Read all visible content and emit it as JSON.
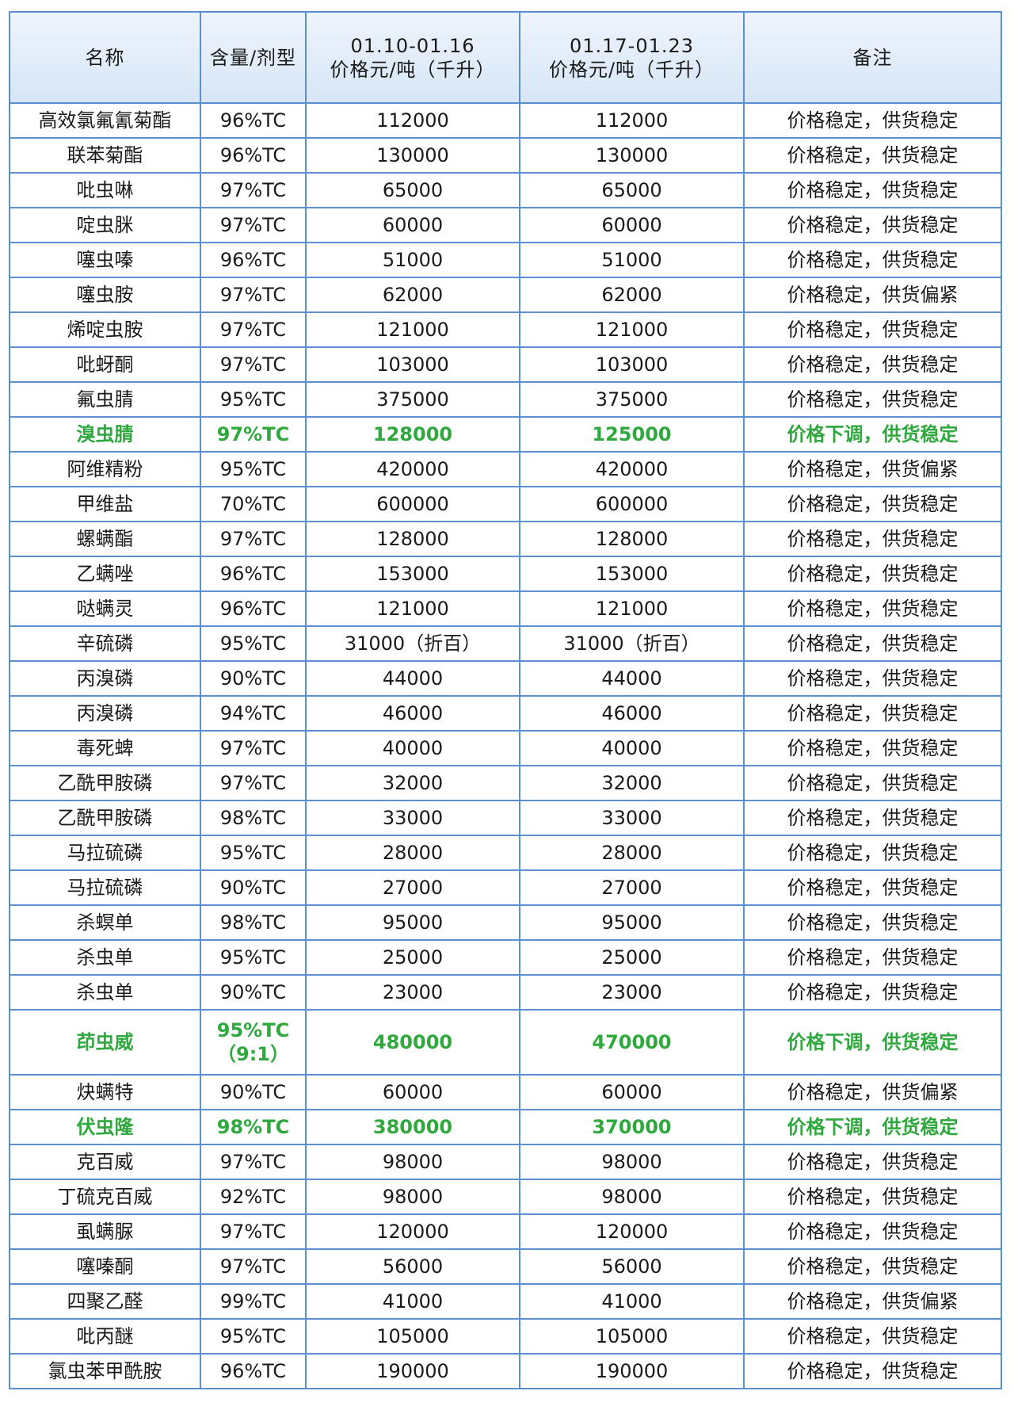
{
  "table": {
    "header": [
      [
        "名称"
      ],
      [
        "含量/剂型"
      ],
      [
        "01.10-01.16",
        "价格元/吨（千升）"
      ],
      [
        "01.17-01.23",
        "价格元/吨（千升）"
      ],
      [
        "备注"
      ]
    ],
    "highlight_color": "#2fa83e",
    "rows": [
      {
        "cells": [
          "高效氯氟氰菊酯",
          "96%TC",
          "112000",
          "112000",
          "价格稳定，供货稳定"
        ]
      },
      {
        "cells": [
          "联苯菊酯",
          "96%TC",
          "130000",
          "130000",
          "价格稳定，供货稳定"
        ]
      },
      {
        "cells": [
          "吡虫啉",
          "97%TC",
          "65000",
          "65000",
          "价格稳定，供货稳定"
        ]
      },
      {
        "cells": [
          "啶虫脒",
          "97%TC",
          "60000",
          "60000",
          "价格稳定，供货稳定"
        ]
      },
      {
        "cells": [
          "噻虫嗪",
          "96%TC",
          "51000",
          "51000",
          "价格稳定，供货稳定"
        ]
      },
      {
        "cells": [
          "噻虫胺",
          "97%TC",
          "62000",
          "62000",
          "价格稳定，供货偏紧"
        ]
      },
      {
        "cells": [
          "烯啶虫胺",
          "97%TC",
          "121000",
          "121000",
          "价格稳定，供货稳定"
        ]
      },
      {
        "cells": [
          "吡蚜酮",
          "97%TC",
          "103000",
          "103000",
          "价格稳定，供货稳定"
        ]
      },
      {
        "cells": [
          "氟虫腈",
          "95%TC",
          "375000",
          "375000",
          "价格稳定，供货稳定"
        ]
      },
      {
        "cells": [
          "溴虫腈",
          "97%TC",
          "128000",
          "125000",
          "价格下调，供货稳定"
        ],
        "highlight": true
      },
      {
        "cells": [
          "阿维精粉",
          "95%TC",
          "420000",
          "420000",
          "价格稳定，供货偏紧"
        ]
      },
      {
        "cells": [
          "甲维盐",
          "70%TC",
          "600000",
          "600000",
          "价格稳定，供货稳定"
        ]
      },
      {
        "cells": [
          "螺螨酯",
          "97%TC",
          "128000",
          "128000",
          "价格稳定，供货稳定"
        ]
      },
      {
        "cells": [
          "乙螨唑",
          "96%TC",
          "153000",
          "153000",
          "价格稳定，供货稳定"
        ]
      },
      {
        "cells": [
          "哒螨灵",
          "96%TC",
          "121000",
          "121000",
          "价格稳定，供货稳定"
        ]
      },
      {
        "cells": [
          "辛硫磷",
          "95%TC",
          "31000（折百）",
          "31000（折百）",
          "价格稳定，供货稳定"
        ]
      },
      {
        "cells": [
          "丙溴磷",
          "90%TC",
          "44000",
          "44000",
          "价格稳定，供货稳定"
        ]
      },
      {
        "cells": [
          "丙溴磷",
          "94%TC",
          "46000",
          "46000",
          "价格稳定，供货稳定"
        ]
      },
      {
        "cells": [
          "毒死蜱",
          "97%TC",
          "40000",
          "40000",
          "价格稳定，供货稳定"
        ]
      },
      {
        "cells": [
          "乙酰甲胺磷",
          "97%TC",
          "32000",
          "32000",
          "价格稳定，供货稳定"
        ]
      },
      {
        "cells": [
          "乙酰甲胺磷",
          "98%TC",
          "33000",
          "33000",
          "价格稳定，供货稳定"
        ]
      },
      {
        "cells": [
          "马拉硫磷",
          "95%TC",
          "28000",
          "28000",
          "价格稳定，供货稳定"
        ]
      },
      {
        "cells": [
          "马拉硫磷",
          "90%TC",
          "27000",
          "27000",
          "价格稳定，供货稳定"
        ]
      },
      {
        "cells": [
          "杀螟单",
          "98%TC",
          "95000",
          "95000",
          "价格稳定，供货稳定"
        ]
      },
      {
        "cells": [
          "杀虫单",
          "95%TC",
          "25000",
          "25000",
          "价格稳定，供货稳定"
        ]
      },
      {
        "cells": [
          "杀虫单",
          "90%TC",
          "23000",
          "23000",
          "价格稳定，供货稳定"
        ]
      },
      {
        "cells": [
          "茚虫威",
          "95%TC（9:1）",
          "480000",
          "470000",
          "价格下调，供货稳定"
        ],
        "highlight": true
      },
      {
        "cells": [
          "炔螨特",
          "90%TC",
          "60000",
          "60000",
          "价格稳定，供货偏紧"
        ]
      },
      {
        "cells": [
          "伏虫隆",
          "98%TC",
          "380000",
          "370000",
          "价格下调，供货稳定"
        ],
        "highlight": true
      },
      {
        "cells": [
          "克百威",
          "97%TC",
          "98000",
          "98000",
          "价格稳定，供货稳定"
        ]
      },
      {
        "cells": [
          "丁硫克百威",
          "92%TC",
          "98000",
          "98000",
          "价格稳定，供货稳定"
        ]
      },
      {
        "cells": [
          "虱螨脲",
          "97%TC",
          "120000",
          "120000",
          "价格稳定，供货稳定"
        ]
      },
      {
        "cells": [
          "噻嗪酮",
          "97%TC",
          "56000",
          "56000",
          "价格稳定，供货稳定"
        ]
      },
      {
        "cells": [
          "四聚乙醛",
          "99%TC",
          "41000",
          "41000",
          "价格稳定，供货偏紧"
        ]
      },
      {
        "cells": [
          "吡丙醚",
          "95%TC",
          "105000",
          "105000",
          "价格稳定，供货稳定"
        ]
      },
      {
        "cells": [
          "氯虫苯甲酰胺",
          "96%TC",
          "190000",
          "190000",
          "价格稳定，供货稳定"
        ]
      }
    ]
  }
}
